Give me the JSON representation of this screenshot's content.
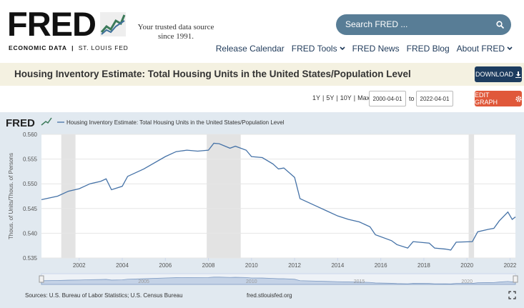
{
  "header": {
    "logo": "FRED",
    "logo_left": "ECONOMIC DATA",
    "logo_right": "ST. LOUIS FED",
    "tagline": [
      "Your trusted data source",
      "since 1991."
    ],
    "search": "Search FRED ...",
    "nav": [
      "Release Calendar",
      "FRED Tools",
      "FRED News",
      "FRED Blog",
      "About FRED"
    ]
  },
  "title_bar": {
    "title": "Housing Inventory Estimate: Total Housing Units in the United States/Population Level",
    "download": "DOWNLOAD"
  },
  "controls": {
    "ranges": [
      "1Y",
      "5Y",
      "10Y",
      "Max"
    ],
    "start": "2000-04-01",
    "to": "to",
    "end": "2022-04-01",
    "edit": "EDIT GRAPH"
  },
  "chart_data": {
    "type": "line",
    "logo": "FRED",
    "ylabel": "Thous. of Units/Thous. of Persons",
    "x": [
      2000.25,
      2001,
      2001.5,
      2002,
      2002.5,
      2003,
      2003.25,
      2003.5,
      2004,
      2004.25,
      2005,
      2006,
      2006.5,
      2007,
      2007.5,
      2008,
      2008.25,
      2008.5,
      2009,
      2009.25,
      2009.75,
      2010,
      2010.5,
      2011,
      2011.25,
      2011.5,
      2012,
      2012.25,
      2013,
      2013.5,
      2014,
      2014.5,
      2015,
      2015.5,
      2015.75,
      2016.5,
      2016.75,
      2017.25,
      2017.5,
      2018.25,
      2018.5,
      2019,
      2019.25,
      2019.5,
      2020.25,
      2020.5,
      2021,
      2021.25,
      2021.5,
      2021.9,
      2022.1,
      2022.25
    ],
    "series": [
      {
        "name": "Housing Inventory Estimate: Total Housing Units in the United States/Population Level",
        "color": "#4572a7",
        "values": [
          0.5468,
          0.5475,
          0.5485,
          0.549,
          0.55,
          0.5505,
          0.551,
          0.5488,
          0.5495,
          0.5515,
          0.553,
          0.5555,
          0.5565,
          0.5568,
          0.5566,
          0.5568,
          0.5582,
          0.5581,
          0.5572,
          0.5576,
          0.5568,
          0.5555,
          0.5553,
          0.554,
          0.553,
          0.5532,
          0.5513,
          0.547,
          0.5455,
          0.5445,
          0.5435,
          0.5428,
          0.5423,
          0.5413,
          0.5397,
          0.5385,
          0.5377,
          0.537,
          0.5383,
          0.538,
          0.537,
          0.5368,
          0.5366,
          0.5382,
          0.5383,
          0.5403,
          0.5408,
          0.541,
          0.5425,
          0.5443,
          0.5428,
          0.5433
        ]
      }
    ],
    "xlim": [
      2000.25,
      2022.25
    ],
    "xticks": [
      2002,
      2004,
      2006,
      2008,
      2010,
      2012,
      2014,
      2016,
      2018,
      2020,
      2022
    ],
    "ylim": [
      0.535,
      0.56
    ],
    "yticks": [
      0.535,
      {
        "value": 0.54,
        "label": "0.540"
      },
      0.545,
      {
        "value": 0.55,
        "label": "0.550"
      },
      0.555,
      {
        "value": 0.56,
        "label": "0.560"
      }
    ],
    "grid": true,
    "recessions": [
      [
        2001.17,
        2001.83
      ],
      [
        2007.92,
        2009.5
      ],
      [
        2020.08,
        2020.33
      ]
    ],
    "navigator_xticks": [
      2005,
      2010,
      2015,
      2020
    ]
  },
  "footer": {
    "source": "Sources: U.S. Bureau of Labor Statistics; U.S. Census Bureau",
    "url": "fred.stlouisfed.org"
  }
}
